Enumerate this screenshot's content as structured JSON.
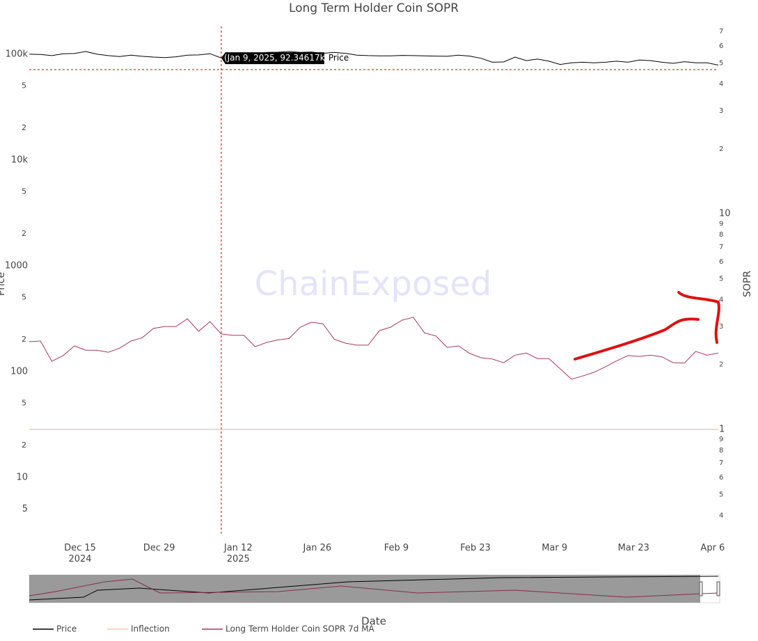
{
  "chart_data": {
    "type": "line",
    "title": "Long Term Holder Coin SOPR",
    "xlabel": "Date",
    "ylabel": "Price",
    "y2label": "SOPR",
    "watermark": "ChainExposed",
    "log_y": true,
    "log_y2": true,
    "x": [
      "2024-12-06",
      "2024-12-08",
      "2024-12-10",
      "2024-12-12",
      "2024-12-14",
      "2024-12-16",
      "2024-12-18",
      "2024-12-20",
      "2024-12-22",
      "2024-12-24",
      "2024-12-26",
      "2024-12-28",
      "2024-12-30",
      "2025-01-01",
      "2025-01-03",
      "2025-01-05",
      "2025-01-07",
      "2025-01-09",
      "2025-01-11",
      "2025-01-13",
      "2025-01-15",
      "2025-01-17",
      "2025-01-19",
      "2025-01-21",
      "2025-01-23",
      "2025-01-25",
      "2025-01-27",
      "2025-01-29",
      "2025-01-31",
      "2025-02-02",
      "2025-02-04",
      "2025-02-06",
      "2025-02-08",
      "2025-02-10",
      "2025-02-12",
      "2025-02-14",
      "2025-02-16",
      "2025-02-18",
      "2025-02-20",
      "2025-02-22",
      "2025-02-24",
      "2025-02-26",
      "2025-02-28",
      "2025-03-02",
      "2025-03-04",
      "2025-03-06",
      "2025-03-08",
      "2025-03-10",
      "2025-03-12",
      "2025-03-14",
      "2025-03-16",
      "2025-03-18",
      "2025-03-20",
      "2025-03-22",
      "2025-03-24",
      "2025-03-26",
      "2025-03-28",
      "2025-03-30",
      "2025-04-01",
      "2025-04-03",
      "2025-04-05",
      "2025-04-07"
    ],
    "series": [
      {
        "name": "Price",
        "color": "#000000",
        "axis": "y",
        "values": [
          100000,
          99500,
          97000,
          101000,
          101500,
          106000,
          100000,
          97000,
          95000,
          98000,
          95500,
          94000,
          93000,
          94500,
          98000,
          98500,
          101000,
          92346.17,
          94500,
          94500,
          100000,
          104000,
          104500,
          106000,
          104000,
          105000,
          102000,
          104000,
          102000,
          98000,
          97000,
          96500,
          96500,
          97500,
          97000,
          96500,
          96000,
          95500,
          98000,
          96000,
          91500,
          84000,
          84500,
          94000,
          87000,
          90000,
          86000,
          80000,
          83000,
          84000,
          83000,
          84000,
          86000,
          84000,
          88000,
          87000,
          84000,
          82000,
          85000,
          83000,
          83000,
          79000
        ]
      },
      {
        "name": "Inflection",
        "color": "#f7c9a6",
        "axis": "y2",
        "level": 1
      },
      {
        "name": "Long Term Holder Coin SOPR 7d MA",
        "color": "#a8385f",
        "axis": "y2",
        "values": [
          2.55,
          2.57,
          2.07,
          2.2,
          2.44,
          2.33,
          2.33,
          2.28,
          2.38,
          2.57,
          2.66,
          2.94,
          3.0,
          3.0,
          3.26,
          2.85,
          3.16,
          2.77,
          2.73,
          2.73,
          2.42,
          2.53,
          2.6,
          2.64,
          2.98,
          3.14,
          3.09,
          2.62,
          2.51,
          2.46,
          2.46,
          2.87,
          2.98,
          3.21,
          3.31,
          2.8,
          2.71,
          2.4,
          2.44,
          2.25,
          2.15,
          2.12,
          2.04,
          2.21,
          2.26,
          2.13,
          2.13,
          1.91,
          1.71,
          1.77,
          1.84,
          1.95,
          2.08,
          2.2,
          2.18,
          2.21,
          2.17,
          2.04,
          2.03,
          2.3,
          2.21,
          2.26
        ]
      }
    ],
    "hover": {
      "x": "2025-01-09",
      "text": "(Jan 9, 2025, 92.34617k)"
    },
    "xlim": [
      "2024-12-06",
      "2025-04-07"
    ],
    "xticks": [
      {
        "value": "2024-12-15",
        "label": "Dec 15\n2024"
      },
      {
        "value": "2024-12-29",
        "label": "Dec 29"
      },
      {
        "value": "2025-01-12",
        "label": "Jan 12\n2025"
      },
      {
        "value": "2025-01-26",
        "label": "Jan 26"
      },
      {
        "value": "2025-02-09",
        "label": "Feb 9"
      },
      {
        "value": "2025-02-23",
        "label": "Feb 23"
      },
      {
        "value": "2025-03-09",
        "label": "Mar 9"
      },
      {
        "value": "2025-03-23",
        "label": "Mar 23"
      },
      {
        "value": "2025-04-06",
        "label": "Apr 6"
      }
    ],
    "ylim": [
      2.8,
      183000
    ],
    "yticks": [
      5,
      10,
      {
        "value": 20,
        "label": "2"
      },
      {
        "value": 50,
        "label": "5"
      },
      100,
      {
        "value": 200,
        "label": "2"
      },
      {
        "value": 500,
        "label": "5"
      },
      1000,
      {
        "value": 2000,
        "label": "2"
      },
      {
        "value": 5000,
        "label": "5"
      },
      {
        "value": 10000,
        "label": "10k"
      },
      {
        "value": 20000,
        "label": "2"
      },
      {
        "value": 50000,
        "label": "5"
      },
      {
        "value": 100000,
        "label": "100k"
      }
    ],
    "y2lim": [
      0.321,
      73.8
    ],
    "y2ticks": [
      {
        "value": 0.4,
        "label": "4"
      },
      {
        "value": 0.5,
        "label": "5"
      },
      {
        "value": 0.6,
        "label": "6"
      },
      {
        "value": 0.7,
        "label": "7"
      },
      {
        "value": 0.8,
        "label": "8"
      },
      {
        "value": 0.9,
        "label": "9"
      },
      1,
      2,
      3,
      4,
      5,
      6,
      7,
      8,
      9,
      10,
      {
        "value": 20,
        "label": "2"
      },
      {
        "value": 30,
        "label": "3"
      },
      {
        "value": 40,
        "label": "4"
      },
      {
        "value": 50,
        "label": "5"
      },
      {
        "value": 60,
        "label": "6"
      },
      {
        "value": 70,
        "label": "7"
      }
    ],
    "grid": false,
    "legend": "bottom-left"
  }
}
